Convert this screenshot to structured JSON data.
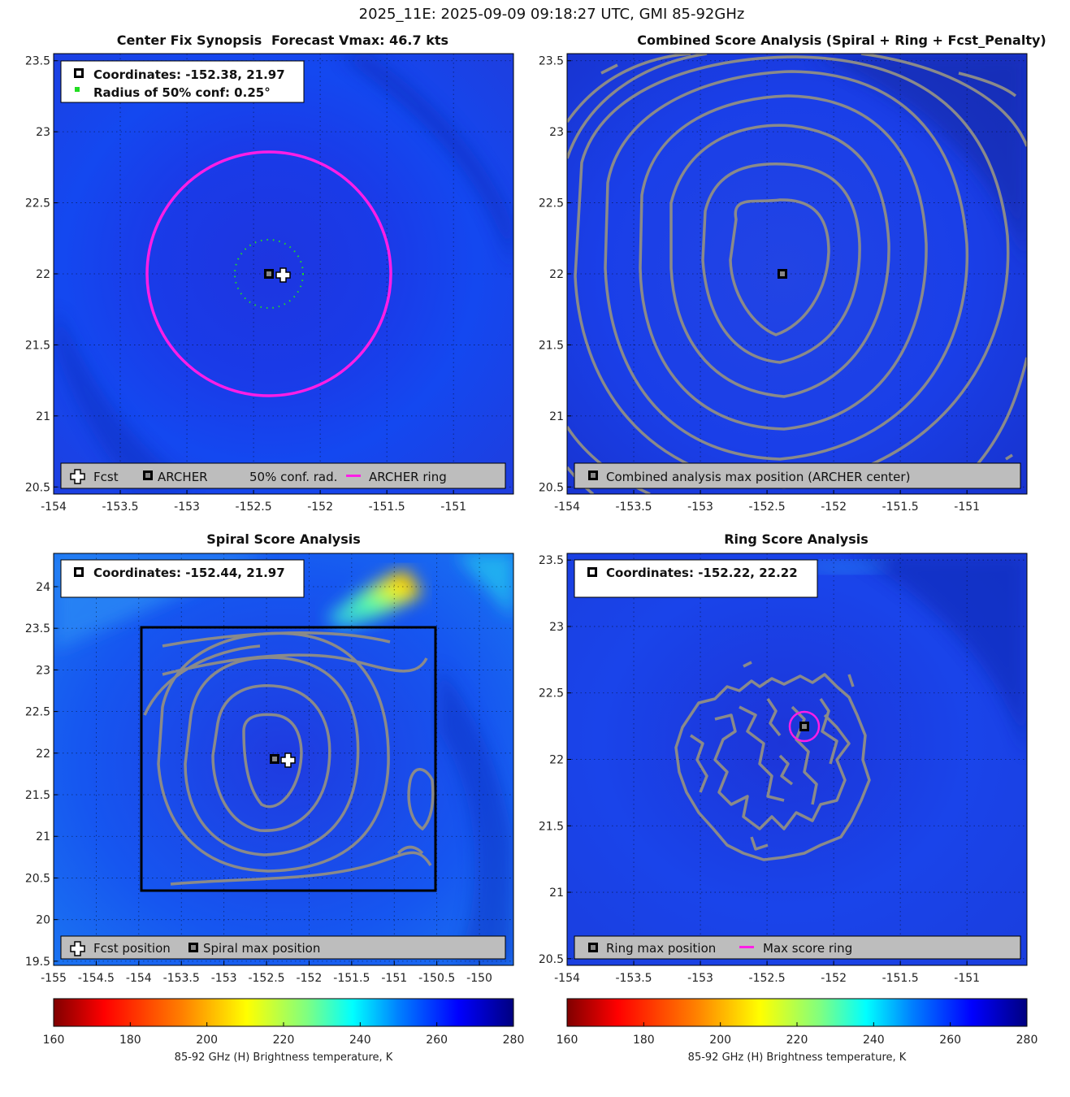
{
  "suptitle": "2025_11E: 2025-09-09 09:18:27 UTC, GMI 85-92GHz",
  "colors": {
    "background_field": "#1f3fe6",
    "contour": "#8a8a8a",
    "archer_ring": "#ff1ee6",
    "conf_radius": "#22dd22",
    "legend_box": "#bdbdbd"
  },
  "chart_data": [
    {
      "type": "heatmap",
      "panel": "top-left",
      "title_left": "Center Fix Synopsis",
      "title_right": "Forecast Vmax: 46.7 kts",
      "xlim": [
        -154,
        -150.55
      ],
      "ylim": [
        20.45,
        23.55
      ],
      "xticks": [
        "-154",
        "-153.5",
        "-153",
        "-152.5",
        "-152",
        "-151.5",
        "-151"
      ],
      "yticks": [
        "20.5",
        "21",
        "21.5",
        "22",
        "22.5",
        "23",
        "23.5"
      ],
      "info_lines": [
        "Coordinates: -152.38, 21.97",
        "Radius of 50% conf: 0.25°"
      ],
      "archer_center": [
        -152.38,
        21.97
      ],
      "fcst_position": [
        -152.28,
        21.97
      ],
      "conf_radius_deg": 0.25,
      "archer_ring_radius_deg": 0.9,
      "legend": [
        "Fcst",
        "ARCHER",
        "50% conf. rad.",
        "ARCHER ring"
      ]
    },
    {
      "type": "heatmap",
      "panel": "top-right",
      "title": "Combined Score Analysis (Spiral + Ring + Fcst_Penalty)",
      "xlim": [
        -154,
        -150.55
      ],
      "ylim": [
        20.45,
        23.55
      ],
      "xticks": [
        "-154",
        "-153.5",
        "-153",
        "-152.5",
        "-152",
        "-151.5",
        "-151"
      ],
      "yticks": [
        "20.5",
        "21",
        "21.5",
        "22",
        "22.5",
        "23",
        "23.5"
      ],
      "max_position": [
        -152.38,
        21.97
      ],
      "legend": [
        "Combined analysis max position (ARCHER center)"
      ]
    },
    {
      "type": "heatmap",
      "panel": "bottom-left",
      "title": "Spiral Score Analysis",
      "xlim": [
        -155,
        -149.6
      ],
      "ylim": [
        19.45,
        24.4
      ],
      "xticks": [
        "-155",
        "-154.5",
        "-154",
        "-153.5",
        "-153",
        "-152.5",
        "-152",
        "-151.5",
        "-151",
        "-150.5",
        "-150"
      ],
      "yticks": [
        "19.5",
        "20",
        "20.5",
        "21",
        "21.5",
        "22",
        "22.5",
        "23",
        "23.5",
        "24"
      ],
      "info_lines": [
        "Coordinates: -152.44, 21.97"
      ],
      "spiral_max": [
        -152.44,
        21.97
      ],
      "fcst_position": [
        -152.28,
        21.97
      ],
      "search_box": [
        -154.0,
        20.4,
        -150.55,
        23.6
      ],
      "legend": [
        "Fcst position",
        "Spiral max position"
      ]
    },
    {
      "type": "heatmap",
      "panel": "bottom-right",
      "title": "Ring Score Analysis",
      "xlim": [
        -154,
        -150.55
      ],
      "ylim": [
        20.45,
        23.55
      ],
      "xticks": [
        "-154",
        "-153.5",
        "-153",
        "-152.5",
        "-152",
        "-151.5",
        "-151"
      ],
      "yticks": [
        "20.5",
        "21",
        "21.5",
        "22",
        "22.5",
        "23",
        "23.5"
      ],
      "info_lines": [
        "Coordinates: -152.22, 22.22"
      ],
      "ring_max": [
        -152.22,
        22.22
      ],
      "max_ring_radius_deg": 0.1,
      "legend": [
        "Ring max position",
        "Max score ring"
      ]
    }
  ],
  "colorbar": {
    "min": 160,
    "max": 280,
    "ticks": [
      "160",
      "180",
      "200",
      "220",
      "240",
      "260",
      "280"
    ],
    "label": "85-92 GHz (H) Brightness temperature, K",
    "stops": [
      "#800000",
      "#ff0000",
      "#ff8000",
      "#ffff00",
      "#80ff80",
      "#00ffff",
      "#0080ff",
      "#0000ff",
      "#000080"
    ]
  }
}
